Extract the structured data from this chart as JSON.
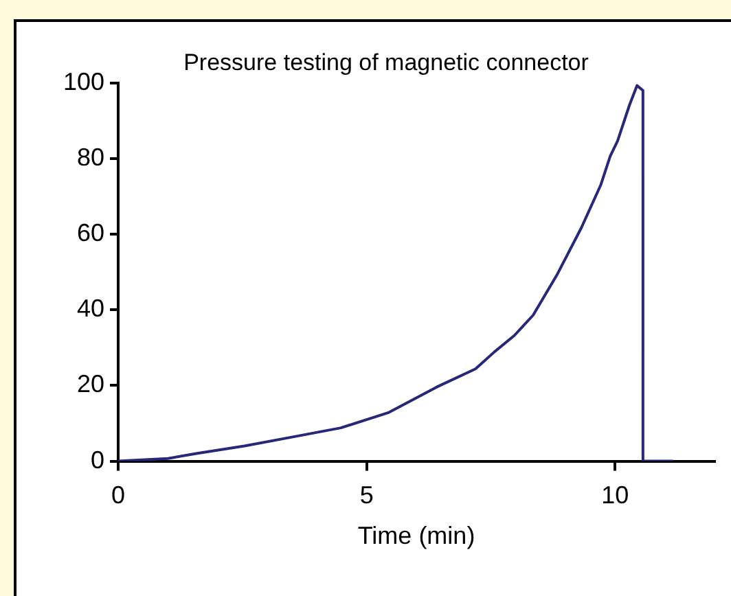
{
  "chart_data": {
    "type": "line",
    "title": "Pressure testing of magnetic connector",
    "xlabel": "Time (min)",
    "xlim": [
      0,
      12
    ],
    "xticks": [
      0,
      5,
      10
    ],
    "ylim": [
      0,
      100
    ],
    "yticks": [
      0,
      20,
      40,
      60,
      80,
      100
    ],
    "grid": false,
    "legend": false,
    "marker": "none",
    "line_style": "solid",
    "series": [
      {
        "color": "#26287a",
        "x": [
          0,
          1,
          1.57,
          2.54,
          3.51,
          4.48,
          5.45,
          6.41,
          7.19,
          7.58,
          7.97,
          8.35,
          8.84,
          9.32,
          9.71,
          9.9,
          10.05,
          10.29,
          10.44,
          10.56,
          10.56,
          10.68,
          11.16
        ],
        "values": [
          0,
          0.7,
          2,
          4,
          6.4,
          8.8,
          12.9,
          19.6,
          24.4,
          29,
          33.2,
          38.6,
          49.5,
          61.7,
          73,
          80.6,
          84.7,
          94.2,
          99.3,
          98,
          0,
          0,
          0
        ]
      }
    ]
  }
}
